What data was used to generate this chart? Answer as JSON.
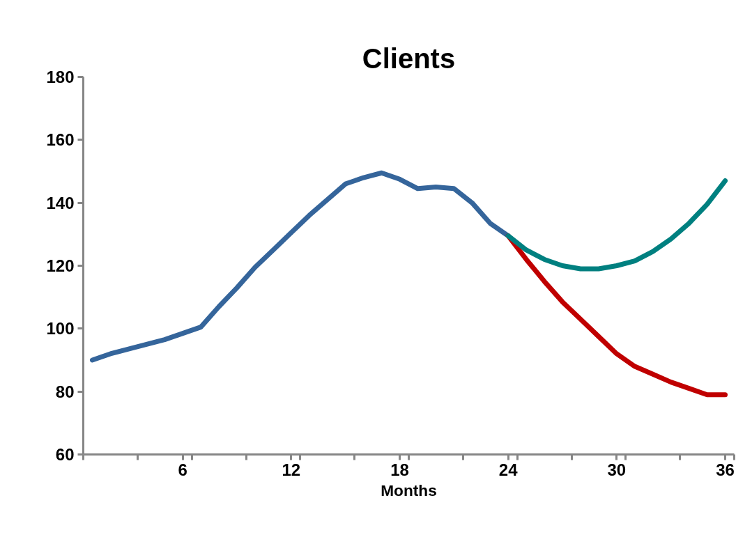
{
  "chart_data": {
    "type": "line",
    "title": "Clients",
    "xlabel": "Months",
    "xlim": [
      0.5,
      36.5
    ],
    "ylim": [
      60,
      180
    ],
    "yticks": [
      60,
      80,
      100,
      120,
      140,
      160,
      180
    ],
    "xticks": [
      {
        "value": 0.5,
        "label": null
      },
      {
        "value": 3.5,
        "label": null
      },
      {
        "value": 6,
        "label": "6"
      },
      {
        "value": 6.5,
        "label": null
      },
      {
        "value": 9.5,
        "label": null
      },
      {
        "value": 12,
        "label": "12"
      },
      {
        "value": 12.5,
        "label": null
      },
      {
        "value": 15.5,
        "label": null
      },
      {
        "value": 18,
        "label": "18"
      },
      {
        "value": 18.5,
        "label": null
      },
      {
        "value": 21.5,
        "label": null
      },
      {
        "value": 24,
        "label": "24"
      },
      {
        "value": 24.5,
        "label": null
      },
      {
        "value": 27.5,
        "label": null
      },
      {
        "value": 30,
        "label": "30"
      },
      {
        "value": 30.5,
        "label": null
      },
      {
        "value": 33.5,
        "label": null
      },
      {
        "value": 36,
        "label": "36"
      },
      {
        "value": 36.5,
        "label": null
      }
    ],
    "grid": false,
    "marker": "none",
    "line_style": "solid",
    "series": [
      {
        "color": "#35659b",
        "x": [
          1,
          2,
          3,
          4,
          5,
          6,
          7,
          8,
          9,
          10,
          11,
          12,
          13,
          14,
          15,
          16,
          17,
          18,
          19,
          20,
          21,
          22,
          23,
          24
        ],
        "values": [
          90,
          92,
          93.5,
          95,
          96.5,
          98.5,
          100.5,
          107,
          113,
          119.5,
          125,
          130.5,
          136,
          141,
          146,
          148,
          149.5,
          147.5,
          144.5,
          145,
          144.5,
          140,
          133.5,
          129.5
        ]
      },
      {
        "color": "#c00000",
        "x": [
          24,
          25,
          26,
          27,
          28,
          29,
          30,
          31,
          32,
          33,
          34,
          35,
          36
        ],
        "values": [
          129.5,
          122,
          115,
          108.5,
          103,
          97.5,
          92,
          88,
          85.5,
          83,
          81,
          79,
          79
        ]
      },
      {
        "color": "#008080",
        "x": [
          24,
          25,
          26,
          27,
          28,
          29,
          30,
          31,
          32,
          33,
          34,
          35,
          36
        ],
        "values": [
          129.5,
          125,
          122,
          120,
          119,
          119,
          120,
          121.5,
          124.5,
          128.5,
          133.5,
          139.5,
          147
        ]
      }
    ]
  }
}
